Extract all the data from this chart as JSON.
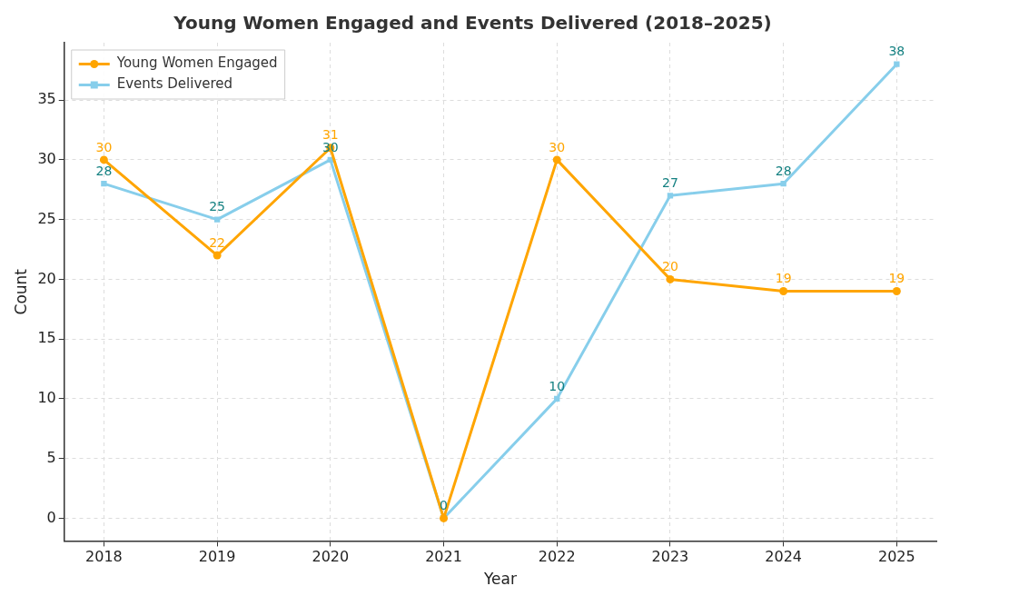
{
  "chart_data": {
    "type": "line",
    "title": "Young Women Engaged and Events Delivered (2018–2025)",
    "xlabel": "Year",
    "ylabel": "Count",
    "x": [
      2018,
      2019,
      2020,
      2021,
      2022,
      2023,
      2024,
      2025
    ],
    "xlim": [
      2017.65,
      2025.35
    ],
    "xticks": [
      2018,
      2019,
      2020,
      2021,
      2022,
      2023,
      2024,
      2025
    ],
    "ylim": [
      -1.9,
      39.8
    ],
    "yticks": [
      0,
      5,
      10,
      15,
      20,
      25,
      30,
      35
    ],
    "series": [
      {
        "name": "Young Women Engaged",
        "color": "#ffa500",
        "marker": "circle",
        "values": [
          30,
          22,
          31,
          0,
          30,
          20,
          19,
          19
        ],
        "value_labels": [
          "30",
          "22",
          "31",
          null,
          "30",
          "20",
          "19",
          "19"
        ]
      },
      {
        "name": "Events Delivered",
        "color": "#87ceeb",
        "marker": "square",
        "values": [
          28,
          25,
          30,
          0,
          10,
          27,
          28,
          38
        ],
        "value_labels": [
          "28",
          "25",
          "30",
          "0",
          "10",
          "27",
          "28",
          "38"
        ]
      }
    ],
    "grid": true,
    "legend": "top left",
    "line_style": "solid"
  }
}
